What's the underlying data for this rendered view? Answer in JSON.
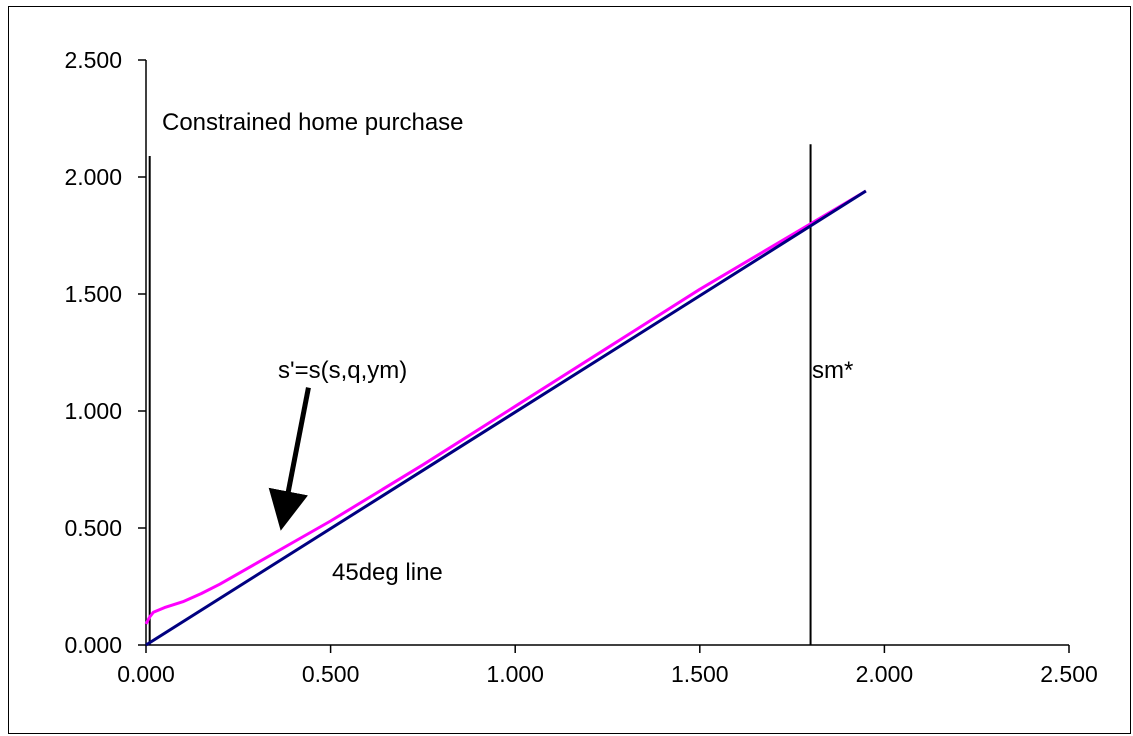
{
  "chart_data": {
    "type": "line",
    "xlim": [
      0,
      2.5
    ],
    "ylim": [
      0,
      2.5
    ],
    "x_ticks": [
      "0.000",
      "0.500",
      "1.000",
      "1.500",
      "2.000",
      "2.500"
    ],
    "y_ticks": [
      "0.000",
      "0.500",
      "1.000",
      "1.500",
      "2.000",
      "2.500"
    ],
    "grid": false,
    "legend": "none",
    "series": [
      {
        "color": "#ff00ff",
        "points": [
          [
            0,
            0.09
          ],
          [
            0.01,
            0.12
          ],
          [
            0.02,
            0.14
          ],
          [
            0.05,
            0.16
          ],
          [
            0.1,
            0.185
          ],
          [
            0.15,
            0.22
          ],
          [
            0.2,
            0.26
          ],
          [
            0.3,
            0.35
          ],
          [
            0.4,
            0.44
          ],
          [
            0.5,
            0.53
          ],
          [
            0.75,
            0.77
          ],
          [
            1.0,
            1.02
          ],
          [
            1.25,
            1.27
          ],
          [
            1.5,
            1.52
          ],
          [
            1.8,
            1.8
          ],
          [
            1.95,
            1.94
          ]
        ]
      },
      {
        "color": "#000080",
        "points": [
          [
            0,
            0
          ],
          [
            1.95,
            1.94
          ]
        ]
      }
    ],
    "vertical_lines": [
      {
        "x": 0.01,
        "y_top": 2.09,
        "color": "#000000"
      },
      {
        "x": 1.8,
        "y_top": 2.14,
        "color": "#000000"
      }
    ],
    "annotations": {
      "constrained": "Constrained home purchase",
      "policy": "s'=s(s,q,ym)",
      "diag": "45deg line",
      "sm": "sm*"
    },
    "arrow": {
      "from": [
        0.44,
        1.1
      ],
      "to": [
        0.37,
        0.53
      ],
      "color": "#000000"
    }
  }
}
